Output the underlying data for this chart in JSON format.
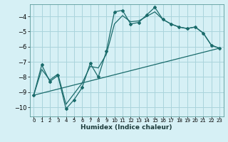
{
  "title": "",
  "xlabel": "Humidex (Indice chaleur)",
  "background_color": "#d6f0f5",
  "grid_color": "#aad4dc",
  "line_color": "#1a6b6b",
  "xlim": [
    -0.5,
    23.5
  ],
  "ylim": [
    -10.6,
    -3.2
  ],
  "yticks": [
    -10,
    -9,
    -8,
    -7,
    -6,
    -5,
    -4
  ],
  "xticks": [
    0,
    1,
    2,
    3,
    4,
    5,
    6,
    7,
    8,
    9,
    10,
    11,
    12,
    13,
    14,
    15,
    16,
    17,
    18,
    19,
    20,
    21,
    22,
    23
  ],
  "line1_x": [
    0,
    1,
    2,
    3,
    4,
    5,
    6,
    7,
    8,
    9,
    10,
    11,
    12,
    13,
    14,
    15,
    16,
    17,
    18,
    19,
    20,
    21,
    22,
    23
  ],
  "line1_y": [
    -9.2,
    -7.2,
    -8.3,
    -7.9,
    -10.1,
    -9.5,
    -8.7,
    -7.1,
    -8.0,
    -6.3,
    -3.7,
    -3.6,
    -4.5,
    -4.4,
    -3.9,
    -3.4,
    -4.2,
    -4.5,
    -4.7,
    -4.8,
    -4.7,
    -5.1,
    -5.9,
    -6.1
  ],
  "line2_x": [
    0,
    1,
    2,
    3,
    4,
    5,
    6,
    7,
    8,
    9,
    10,
    11,
    12,
    13,
    14,
    15,
    16,
    17,
    18,
    19,
    20,
    21,
    22,
    23
  ],
  "line2_y": [
    -9.2,
    -7.5,
    -8.2,
    -7.8,
    -9.8,
    -9.1,
    -8.4,
    -7.3,
    -7.4,
    -6.5,
    -4.5,
    -3.95,
    -4.35,
    -4.3,
    -4.0,
    -3.7,
    -4.2,
    -4.5,
    -4.7,
    -4.8,
    -4.7,
    -5.1,
    -5.9,
    -6.1
  ],
  "line3_x": [
    0,
    23
  ],
  "line3_y": [
    -9.2,
    -6.1
  ]
}
